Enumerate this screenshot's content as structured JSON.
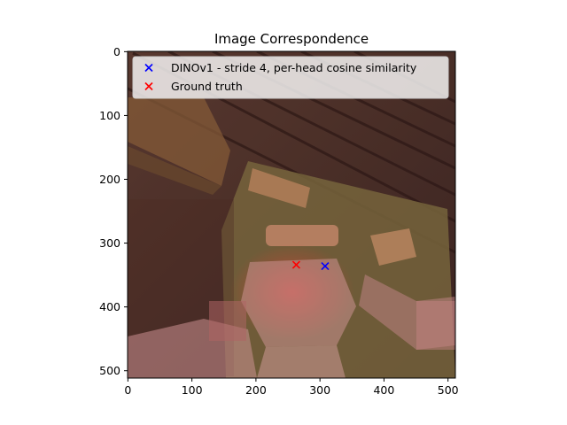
{
  "chart_data": {
    "type": "scatter",
    "title": "Image Correspondence",
    "xlabel": "",
    "ylabel": "",
    "xlim": [
      -0.5,
      511.5
    ],
    "ylim": [
      511.5,
      -0.5
    ],
    "x_ticks": [
      0,
      100,
      200,
      300,
      400,
      500
    ],
    "y_ticks": [
      0,
      100,
      200,
      300,
      400,
      500
    ],
    "grid": false,
    "legend_position": "top-right",
    "series": [
      {
        "name": "DINOv1 - stride 4, per-head cosine similarity",
        "marker": "x",
        "color": "#0000ff",
        "points": [
          {
            "x": 308,
            "y": 336
          }
        ]
      },
      {
        "name": "Ground truth",
        "marker": "x",
        "color": "#ff0000",
        "points": [
          {
            "x": 263,
            "y": 334
          }
        ]
      }
    ],
    "background_image": "dark wooden table top view with cutting board, scissors, knife and hands; red heatmap overlay"
  }
}
